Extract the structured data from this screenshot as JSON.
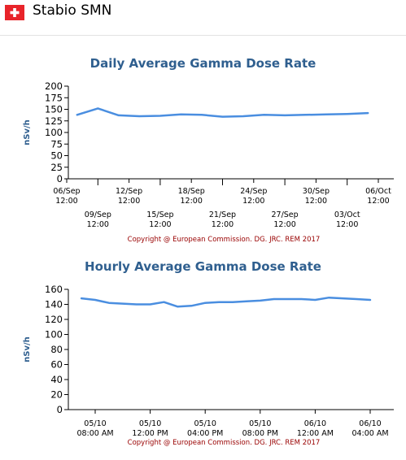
{
  "header": {
    "station": "Stabio SMN",
    "flag_color": "#e8242a"
  },
  "copyright": "Copyright @ European Commission. DG. JRC. REM 2017",
  "colors": {
    "line": "#4a8ee0",
    "title": "#2f5f8f",
    "copyright": "#990000"
  },
  "chart_data": [
    {
      "type": "line",
      "title": "Daily Average Gamma Dose Rate",
      "ylabel": "nSv/h",
      "ylim": [
        0,
        200
      ],
      "yticks": [
        0,
        25,
        50,
        75,
        100,
        125,
        150,
        175,
        200
      ],
      "grid": false,
      "x_start": "06/Sep 12:00",
      "x_end": "06/Oct 12:00",
      "x_ticks": [
        {
          "day": 0,
          "top": "06/Sep",
          "bottom": "12:00",
          "row": 1
        },
        {
          "day": 3,
          "top": "09/Sep",
          "bottom": "12:00",
          "row": 2
        },
        {
          "day": 6,
          "top": "12/Sep",
          "bottom": "12:00",
          "row": 1
        },
        {
          "day": 9,
          "top": "15/Sep",
          "bottom": "12:00",
          "row": 2
        },
        {
          "day": 12,
          "top": "18/Sep",
          "bottom": "12:00",
          "row": 1
        },
        {
          "day": 15,
          "top": "21/Sep",
          "bottom": "12:00",
          "row": 2
        },
        {
          "day": 18,
          "top": "24/Sep",
          "bottom": "12:00",
          "row": 1
        },
        {
          "day": 21,
          "top": "27/Sep",
          "bottom": "12:00",
          "row": 2
        },
        {
          "day": 24,
          "top": "30/Sep",
          "bottom": "12:00",
          "row": 1
        },
        {
          "day": 27,
          "top": "03/Oct",
          "bottom": "12:00",
          "row": 2
        },
        {
          "day": 30,
          "top": "06/Oct",
          "bottom": "12:00",
          "row": 1
        }
      ],
      "series": [
        {
          "x": [
            1,
            3,
            5,
            7,
            9,
            11,
            13,
            15,
            17,
            19,
            21,
            23,
            25,
            27,
            29
          ],
          "y": [
            138,
            152,
            137,
            135,
            136,
            139,
            138,
            134,
            135,
            138,
            137,
            138,
            139,
            140,
            142
          ]
        }
      ]
    },
    {
      "type": "line",
      "title": "Hourly Average Gamma Dose Rate",
      "ylabel": "nSv/h",
      "ylim": [
        0,
        160
      ],
      "yticks": [
        0,
        20,
        40,
        60,
        80,
        100,
        120,
        140,
        160
      ],
      "grid": false,
      "x_ticks": [
        {
          "hour": 8,
          "top": "05/10",
          "bottom": "08:00 AM"
        },
        {
          "hour": 12,
          "top": "05/10",
          "bottom": "12:00 PM"
        },
        {
          "hour": 16,
          "top": "05/10",
          "bottom": "04:00 PM"
        },
        {
          "hour": 20,
          "top": "05/10",
          "bottom": "08:00 PM"
        },
        {
          "hour": 24,
          "top": "06/10",
          "bottom": "12:00 AM"
        },
        {
          "hour": 28,
          "top": "06/10",
          "bottom": "04:00 AM"
        }
      ],
      "series": [
        {
          "x": [
            7,
            8,
            9,
            10,
            11,
            12,
            13,
            14,
            15,
            16,
            17,
            18,
            19,
            20,
            21,
            22,
            23,
            24,
            25,
            26,
            27,
            28
          ],
          "y": [
            148,
            146,
            142,
            141,
            140,
            140,
            143,
            137,
            138,
            142,
            143,
            143,
            144,
            145,
            147,
            147,
            147,
            146,
            149,
            148,
            147,
            146
          ]
        }
      ]
    }
  ]
}
